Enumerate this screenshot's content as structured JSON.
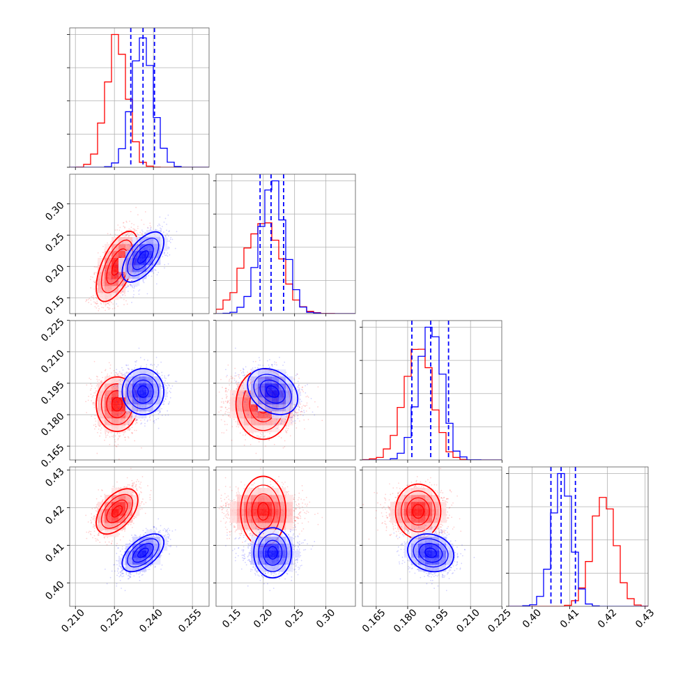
{
  "chart_data": {
    "type": "corner",
    "colors": {
      "series_a": "#ff0000",
      "series_b": "#0000ff",
      "grid": "#b0b0b0"
    },
    "params": [
      {
        "range": [
          0.2078,
          0.2614
        ],
        "ticks": [
          0.21,
          0.225,
          0.24,
          0.255
        ],
        "tick_labels": [
          "0.210",
          "0.225",
          "0.240",
          "0.255"
        ]
      },
      {
        "range": [
          0.1247,
          0.3471
        ],
        "ticks": [
          0.15,
          0.2,
          0.25,
          0.3
        ],
        "tick_labels": [
          "0.15",
          "0.20",
          "0.25",
          "0.30"
        ]
      },
      {
        "range": [
          0.1584,
          0.2249
        ],
        "ticks": [
          0.165,
          0.18,
          0.195,
          0.21,
          0.225
        ],
        "tick_labels": [
          "0.165",
          "0.180",
          "0.195",
          "0.210",
          "0.225"
        ]
      },
      {
        "range": [
          0.3938,
          0.4308
        ],
        "ticks": [
          0.4,
          0.41,
          0.42,
          0.43
        ],
        "tick_labels": [
          "0.40",
          "0.41",
          "0.42",
          "0.43"
        ]
      }
    ],
    "series": [
      {
        "color": "#ff0000",
        "means": [
          0.226,
          0.2,
          0.185,
          0.419
        ],
        "stds": [
          0.004,
          0.028,
          0.0065,
          0.003
        ],
        "correlations": [
          [
            0,
            1,
            0.6
          ],
          [
            0,
            2,
            0.0
          ],
          [
            0,
            3,
            0.5
          ],
          [
            1,
            2,
            0.0
          ],
          [
            1,
            3,
            0.0
          ],
          [
            2,
            3,
            0.0
          ]
        ]
      },
      {
        "color": "#0000ff",
        "means": [
          0.236,
          0.215,
          0.191,
          0.408
        ],
        "stds": [
          0.004,
          0.02,
          0.0055,
          0.0025
        ],
        "correlations": [
          [
            0,
            1,
            0.6
          ],
          [
            0,
            2,
            0.0
          ],
          [
            0,
            3,
            0.55
          ],
          [
            1,
            2,
            -0.3
          ],
          [
            1,
            3,
            0.0
          ],
          [
            2,
            3,
            -0.15
          ]
        ]
      }
    ],
    "quantile_lines": [
      {
        "param": 0,
        "values": [
          0.2313,
          0.236,
          0.2404
        ]
      },
      {
        "param": 1,
        "values": [
          0.195,
          0.2125,
          0.2325
        ]
      },
      {
        "param": 2,
        "values": [
          0.182,
          0.191,
          0.1995
        ]
      },
      {
        "param": 3,
        "values": [
          0.405,
          0.4077,
          0.4115
        ]
      }
    ]
  }
}
